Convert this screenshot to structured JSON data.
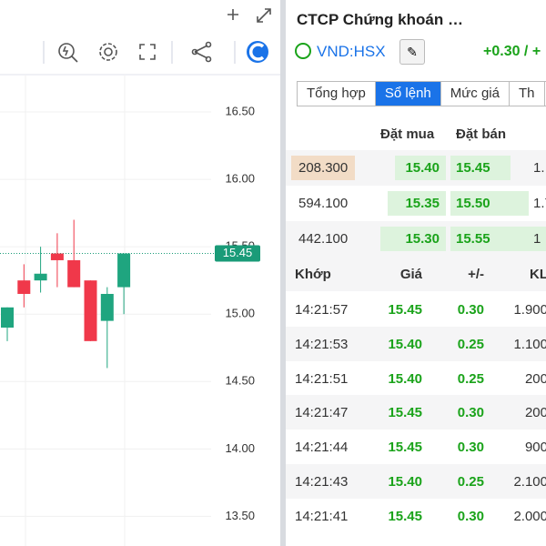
{
  "chart": {
    "type": "candlestick",
    "ylim": [
      13.28,
      16.77
    ],
    "yticks": [
      {
        "value": 16.5,
        "label": "16.50"
      },
      {
        "value": 16,
        "label": "16.00"
      },
      {
        "value": 15.5,
        "label": "15.50"
      },
      {
        "value": 15,
        "label": "15.00"
      },
      {
        "value": 14.5,
        "label": "14.50"
      },
      {
        "value": 14,
        "label": "14.00"
      },
      {
        "value": 13.5,
        "label": "13.50"
      }
    ],
    "last": {
      "value": 15.45,
      "label": "15.45"
    },
    "candles": [
      {
        "open": 14.9,
        "close": 15.05,
        "high": 15.05,
        "low": 14.8
      },
      {
        "open": 15.25,
        "close": 15.15,
        "high": 15.37,
        "low": 15.05
      },
      {
        "open": 15.25,
        "close": 15.3,
        "high": 15.5,
        "low": 15.16
      },
      {
        "open": 15.45,
        "close": 15.4,
        "high": 15.6,
        "low": 15.2
      },
      {
        "open": 15.4,
        "close": 15.2,
        "high": 15.7,
        "low": 15.2
      },
      {
        "open": 15.25,
        "close": 14.8,
        "high": 15.25,
        "low": 14.8
      },
      {
        "open": 14.95,
        "close": 15.15,
        "high": 15.2,
        "low": 14.6
      },
      {
        "open": 15.2,
        "close": 15.45,
        "high": 15.45,
        "low": 15.0
      }
    ]
  },
  "header": {
    "title": "CTCP Chứng khoán …",
    "symbol": "VND:HSX",
    "change": "+0.30 / +"
  },
  "tabs": [
    "Tổng hợp",
    "Sổ lệnh",
    "Mức giá",
    "Th"
  ],
  "orderbook": {
    "columns": [
      "Đặt mua",
      "Đặt bán"
    ],
    "rows": [
      [
        "208.300",
        "15.40",
        "15.45",
        "1."
      ],
      [
        "594.100",
        "15.35",
        "15.50",
        "1.7"
      ],
      [
        "442.100",
        "15.30",
        "15.55",
        "1"
      ]
    ]
  },
  "trades": {
    "columns": [
      "Khớp",
      "Giá",
      "+/-",
      "KL"
    ],
    "rows": [
      [
        "14:21:57",
        "15.45",
        "0.30",
        "1.900"
      ],
      [
        "14:21:53",
        "15.40",
        "0.25",
        "1.100"
      ],
      [
        "14:21:51",
        "15.40",
        "0.25",
        "200"
      ],
      [
        "14:21:47",
        "15.45",
        "0.30",
        "200"
      ],
      [
        "14:21:44",
        "15.45",
        "0.30",
        "900"
      ],
      [
        "14:21:43",
        "15.40",
        "0.25",
        "2.100"
      ],
      [
        "14:21:41",
        "15.45",
        "0.30",
        "2.000"
      ]
    ]
  }
}
